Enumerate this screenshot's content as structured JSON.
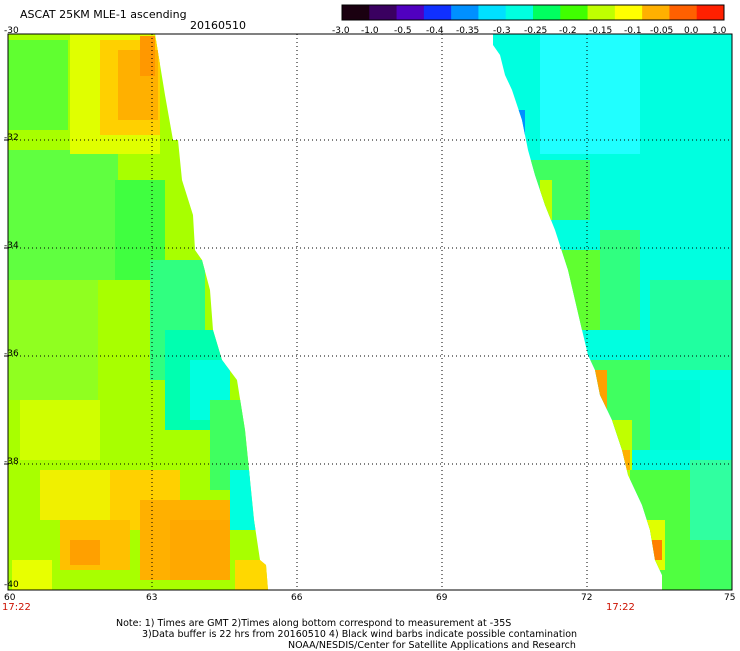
{
  "header": {
    "title": "ASCAT 25KM MLE-1 ascending",
    "date": "20160510"
  },
  "colorbar": {
    "labels": [
      "-3.0",
      "-1.0",
      "-0.5",
      "-0.4",
      "-0.35",
      "-0.3",
      "-0.25",
      "-0.2",
      "-0.15",
      "-0.1",
      "-0.05",
      "0.0",
      "1.0"
    ],
    "colors": [
      "#1a0010",
      "#3a0060",
      "#5000c0",
      "#1030ff",
      "#0090ff",
      "#00e0ff",
      "#00ffe0",
      "#00ff60",
      "#40ff00",
      "#c0ff00",
      "#ffff00",
      "#ffb000",
      "#ff6000",
      "#ff2000"
    ]
  },
  "axes": {
    "lat_labels": [
      "-30",
      "-32",
      "-34",
      "-36",
      "-38",
      "-40"
    ],
    "lon_labels": [
      "60",
      "63",
      "66",
      "69",
      "72",
      "75"
    ],
    "lat_range": [
      -40,
      -30
    ],
    "lon_range": [
      60,
      75
    ]
  },
  "pass_times": {
    "left": "17:22",
    "right": "17:22"
  },
  "notes": [
    "Note: 1) Times are GMT 2)Times along bottom correspond to measurement at -35S",
    "3)Data buffer is 22 hrs from 20160510 4) Black wind barbs indicate possible contamination",
    "NOAA/NESDIS/Center for Satellite Applications and Research"
  ]
}
